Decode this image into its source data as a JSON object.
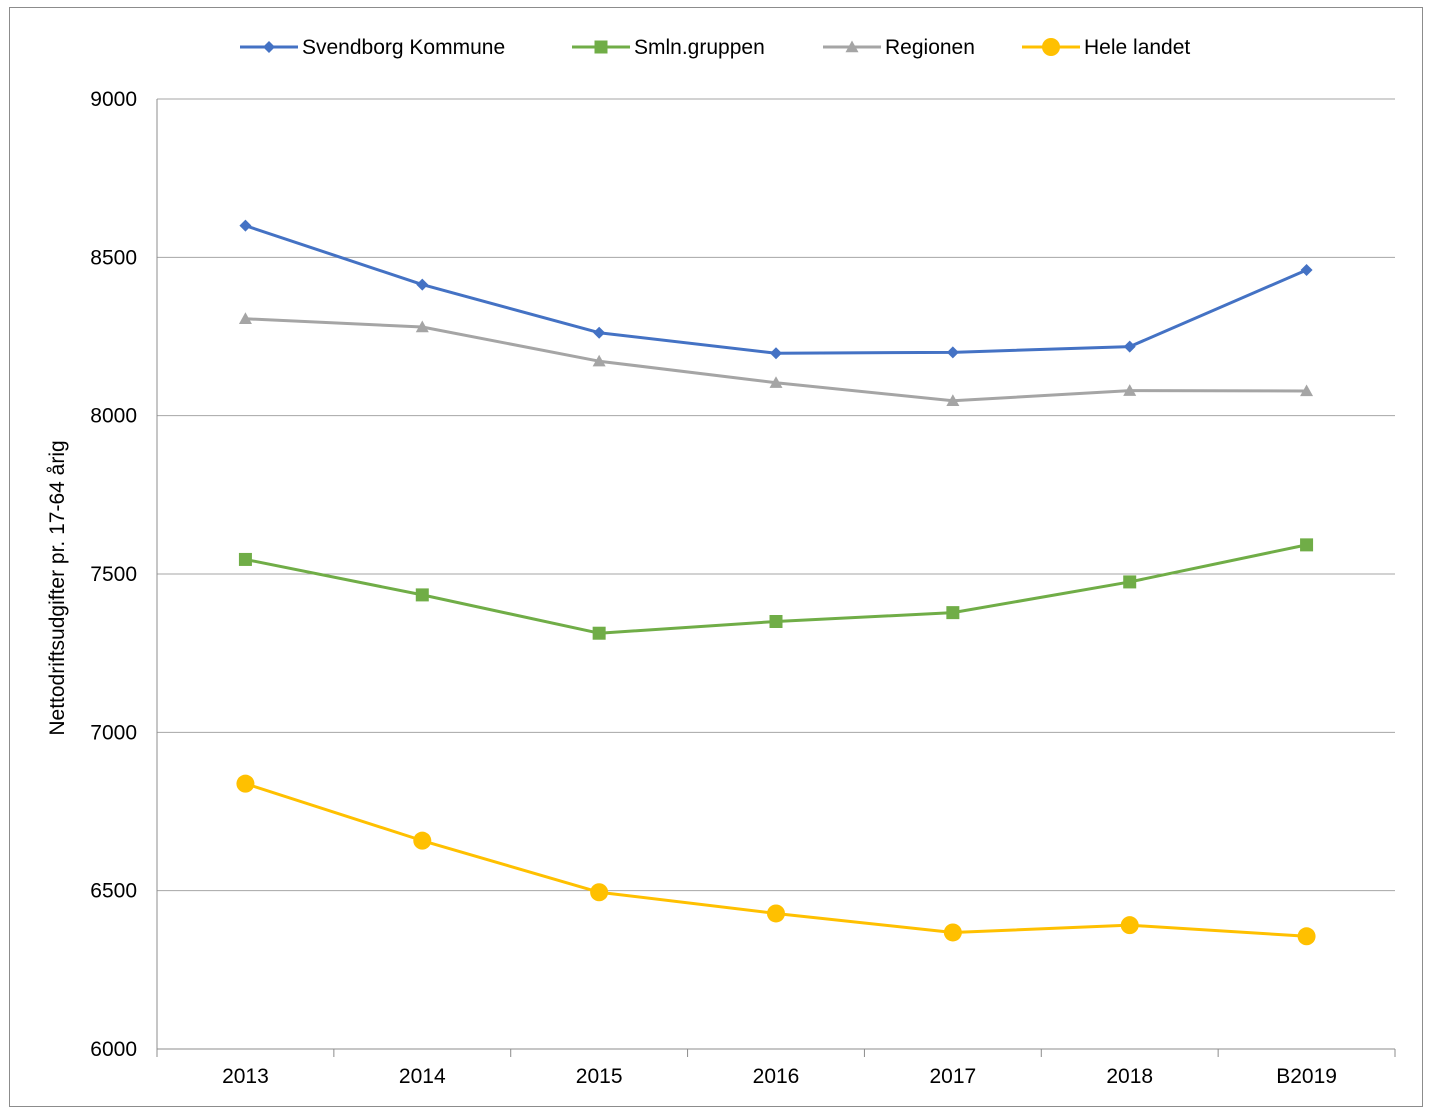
{
  "chart_data": {
    "type": "line",
    "title": "",
    "xlabel": "",
    "ylabel": "Nettodriftsudgifter pr. 17-64 årig",
    "ylim": [
      6000,
      9000
    ],
    "yticks": [
      6000,
      6500,
      7000,
      7500,
      8000,
      8500,
      9000
    ],
    "grid": true,
    "legend_position": "top",
    "categories": [
      "2013",
      "2014",
      "2015",
      "2016",
      "2017",
      "2018",
      "B2019"
    ],
    "series": [
      {
        "name": "Svendborg Kommune",
        "marker": "diamond",
        "color": "#4472C4",
        "values": [
          8600,
          8414,
          8262,
          8197,
          8200,
          8218,
          8460
        ]
      },
      {
        "name": "Smln.gruppen",
        "marker": "square",
        "color": "#70AD47",
        "values": [
          7546,
          7434,
          7313,
          7350,
          7378,
          7475,
          7592
        ]
      },
      {
        "name": "Regionen",
        "marker": "triangle",
        "color": "#A5A5A5",
        "values": [
          8306,
          8280,
          8172,
          8104,
          8047,
          8079,
          8078
        ]
      },
      {
        "name": "Hele landet",
        "marker": "circle",
        "color": "#FFC000",
        "values": [
          6838,
          6658,
          6495,
          6428,
          6368,
          6391,
          6356
        ]
      }
    ]
  }
}
